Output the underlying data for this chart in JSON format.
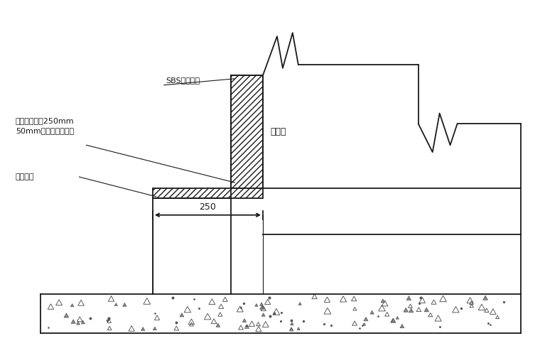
{
  "bg_color": "#ffffff",
  "line_color": "#1a1a1a",
  "hatch_color": "#333333",
  "label_sbs": "SBS防水卷材",
  "label_yingshui": "迎水面",
  "label_shuini": "水泥钉，间距250mm\n50mm宽防锈金属压条",
  "label_youqing": "油青嵌缝",
  "label_250": "250",
  "fig_width": 7.6,
  "fig_height": 5.04,
  "dpi": 100
}
